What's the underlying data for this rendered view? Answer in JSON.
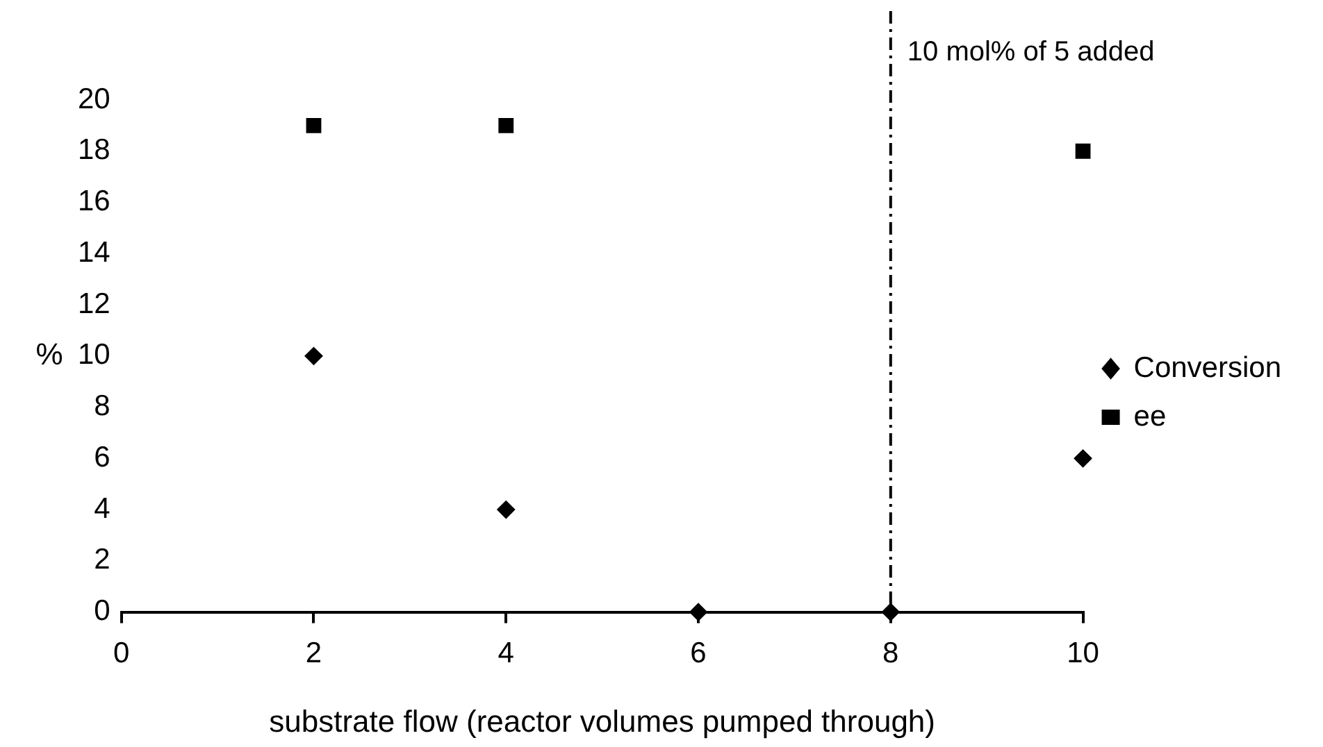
{
  "chart_data": {
    "type": "scatter",
    "xlabel": "substrate flow (reactor volumes pumped through)",
    "ylabel": "%",
    "xlim": [
      0,
      10
    ],
    "xticks": [
      0,
      2,
      4,
      6,
      8,
      10
    ],
    "ylim": [
      0,
      20
    ],
    "yticks": [
      0,
      2,
      4,
      6,
      8,
      10,
      12,
      14,
      16,
      18,
      20
    ],
    "grid": false,
    "legend": "right",
    "series": [
      {
        "name": "Conversion",
        "color": "#000000",
        "marker": "diamond",
        "x": [
          2,
          4,
          6,
          8,
          10
        ],
        "values": [
          10,
          4,
          0,
          0,
          6
        ]
      },
      {
        "name": "ee",
        "color": "#000000",
        "marker": "square",
        "x": [
          2,
          4,
          10
        ],
        "values": [
          19,
          19,
          18
        ]
      }
    ],
    "ref_lines": [
      {
        "axis": "x",
        "value": 8,
        "label": "10 mol% of 5 added",
        "color": "#000000",
        "line_style": "dashed"
      }
    ]
  }
}
